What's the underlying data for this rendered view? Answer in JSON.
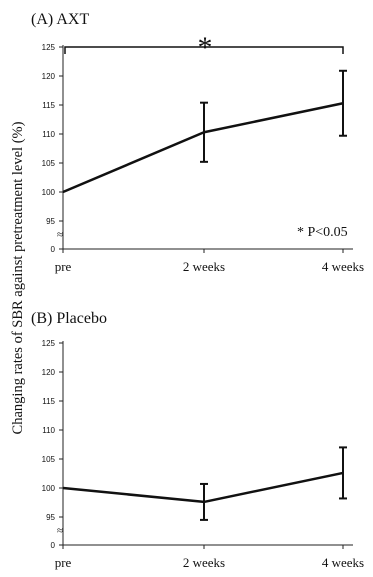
{
  "ylabel": "Changing rates of SBR against pretreatment level (%)",
  "chart_data": [
    {
      "type": "line",
      "title": "(A) AXT",
      "categories": [
        "pre",
        "2 weeks",
        "4 weeks"
      ],
      "values": [
        100,
        110.3,
        115.3
      ],
      "error": [
        0,
        5.1,
        5.6
      ],
      "ylim": [
        0,
        125
      ],
      "yticks": [
        "0",
        "95",
        "100",
        "105",
        "110",
        "115",
        "120",
        "125"
      ],
      "axis_break": "≈",
      "significance_marker": "*",
      "annotation": "* P<0.05",
      "grid": false
    },
    {
      "type": "line",
      "title": "(B) Placebo",
      "categories": [
        "pre",
        "2 weeks",
        "4 weeks"
      ],
      "values": [
        100,
        97.6,
        102.6
      ],
      "error": [
        0,
        3.1,
        4.4
      ],
      "ylim": [
        0,
        125
      ],
      "yticks": [
        "0",
        "95",
        "100",
        "105",
        "110",
        "115",
        "120",
        "125"
      ],
      "axis_break": "≈",
      "grid": false
    }
  ]
}
